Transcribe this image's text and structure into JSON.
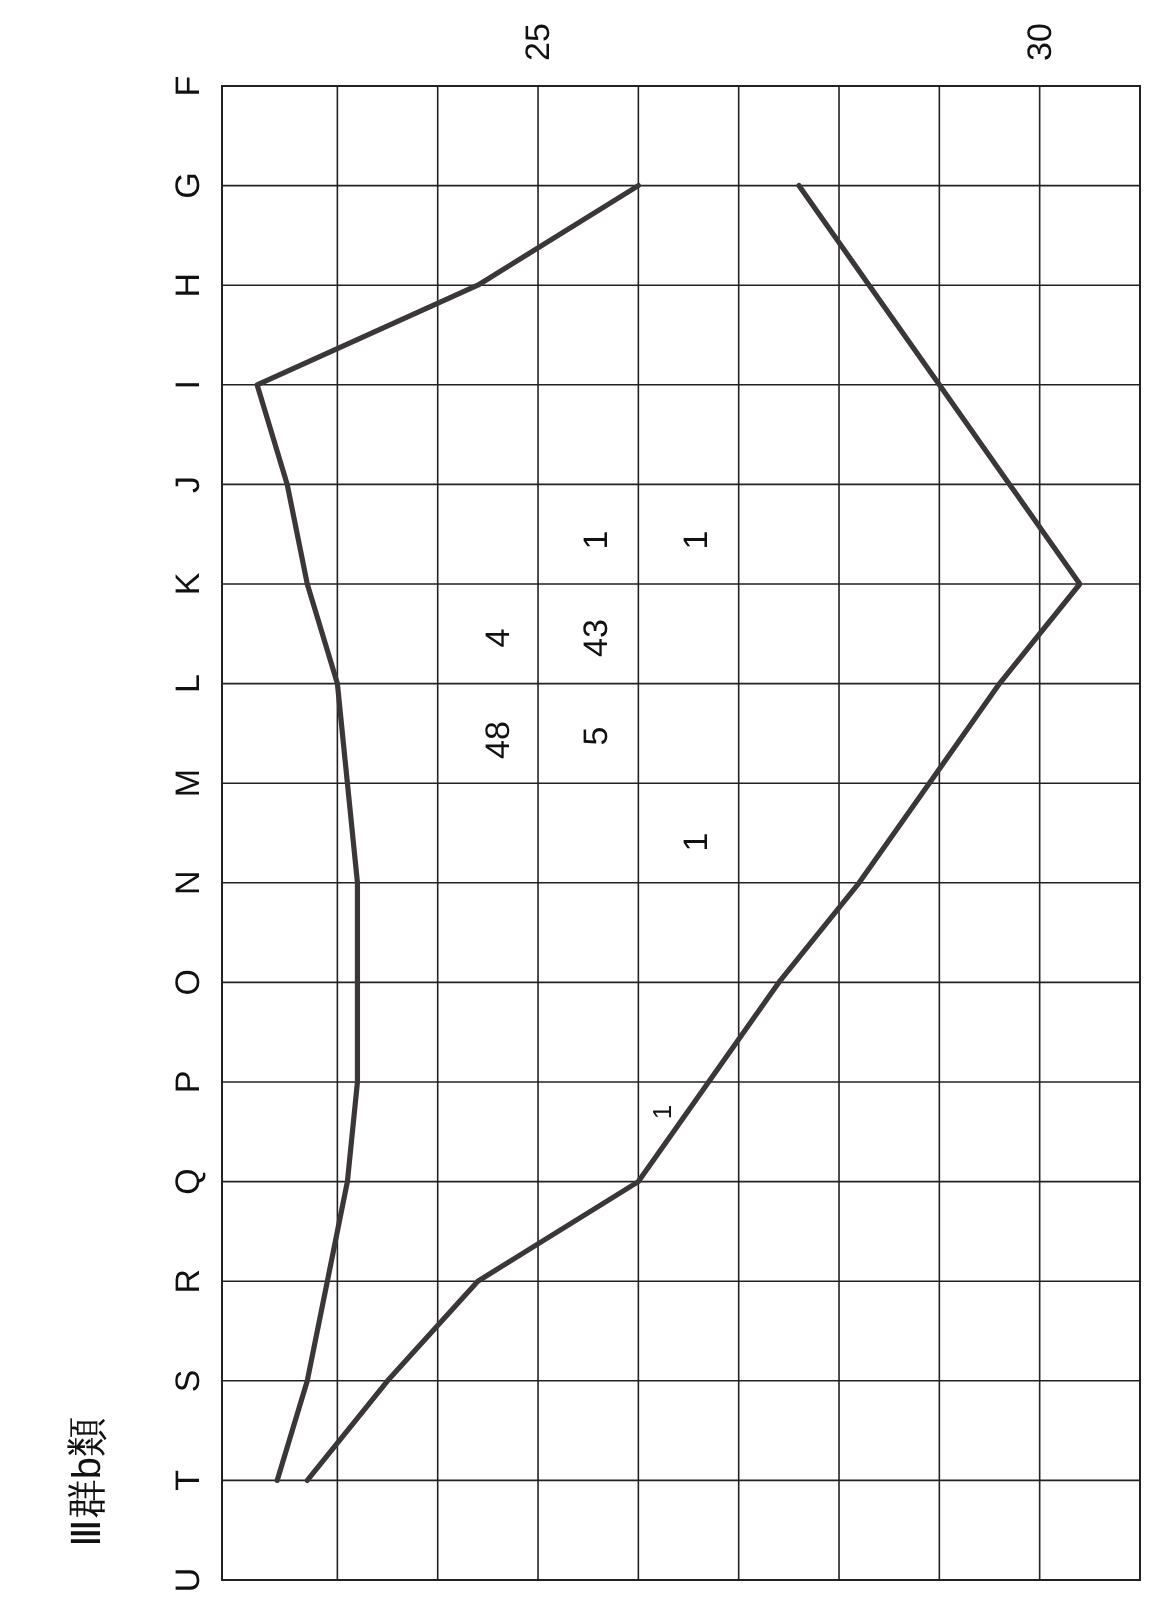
{
  "chart_data": {
    "type": "line",
    "title": "Ⅲ群b類",
    "orientation": "horizontal",
    "categories": [
      "F",
      "G",
      "H",
      "I",
      "J",
      "K",
      "L",
      "M",
      "N",
      "O",
      "P",
      "Q",
      "R",
      "S",
      "T",
      "U"
    ],
    "series": [
      {
        "color": "#3a3736",
        "values": [
          null,
          26.0,
          24.4,
          22.2,
          22.5,
          22.7,
          23.0,
          23.1,
          23.2,
          23.2,
          23.2,
          23.1,
          22.9,
          22.7,
          22.4,
          null
        ]
      },
      {
        "color": "#3a3736",
        "values": [
          null,
          27.6,
          28.3,
          29.0,
          29.7,
          30.4,
          29.6,
          28.9,
          28.2,
          27.4,
          26.7,
          26.0,
          24.4,
          23.5,
          22.7,
          null
        ]
      }
    ],
    "xlim": [
      21.85,
      31
    ],
    "xticks": [
      {
        "value": 23,
        "label": null
      },
      {
        "value": 24,
        "label": null
      },
      25,
      {
        "value": 26,
        "label": null
      },
      {
        "value": 27,
        "label": null
      },
      {
        "value": 28,
        "label": null
      },
      {
        "value": 29,
        "label": null
      },
      30
    ],
    "grid": true,
    "annotations": [
      "1",
      "1",
      "4",
      "43",
      "48",
      "5",
      "1",
      "1"
    ]
  }
}
